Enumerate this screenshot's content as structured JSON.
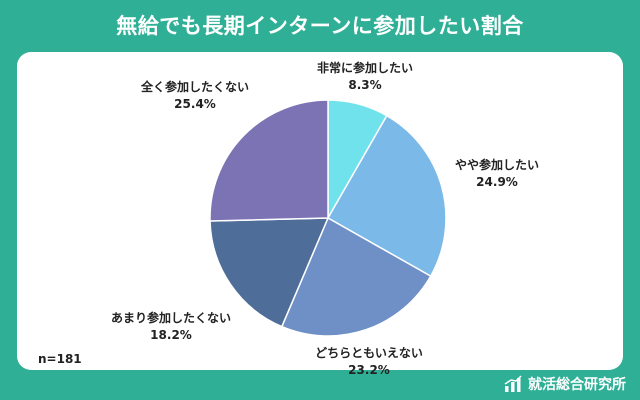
{
  "title": "無給でも長期インターンに参加したい割合",
  "sample_size": "n=181",
  "brand": {
    "name": "就活総合研究所",
    "icon": "bar-chart-icon"
  },
  "colors": {
    "background": "#2fb096",
    "card": "#ffffff"
  },
  "chart_data": {
    "type": "pie",
    "title": "無給でも長期インターンに参加したい割合",
    "start_angle_deg": 0,
    "direction": "clockwise",
    "legend": "none",
    "slices": [
      {
        "label": "非常に参加したい",
        "value": 8.3,
        "value_label": "8.3%",
        "color": "#70e2ec"
      },
      {
        "label": "やや参加したい",
        "value": 24.9,
        "value_label": "24.9%",
        "color": "#7ab9e8"
      },
      {
        "label": "どちらともいえない",
        "value": 23.2,
        "value_label": "23.2%",
        "color": "#6e90c6"
      },
      {
        "label": "あまり参加したくない",
        "value": 18.2,
        "value_label": "18.2%",
        "color": "#4f6d99"
      },
      {
        "label": "全く参加したくない",
        "value": 25.4,
        "value_label": "25.4%",
        "color": "#7b73b4"
      }
    ]
  }
}
